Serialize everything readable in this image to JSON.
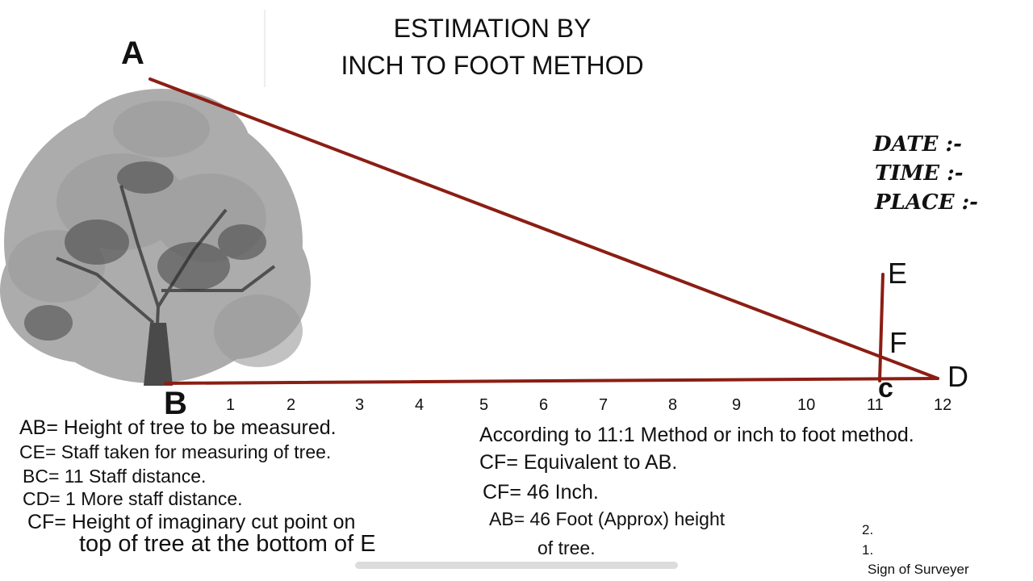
{
  "title": {
    "line1": "ESTIMATION BY",
    "line2": "INCH TO FOOT METHOD"
  },
  "points": {
    "a": "A",
    "b": "B",
    "c": "c",
    "d": "D",
    "e": "E",
    "f": "F"
  },
  "scale_ticks": [
    "1",
    "2",
    "3",
    "4",
    "5",
    "6",
    "7",
    "8",
    "9",
    "10",
    "11",
    "12"
  ],
  "meta": {
    "date": "DATE    :-",
    "time": "TIME     :-",
    "place": "PLACE :-"
  },
  "definitions": [
    "AB= Height of tree to be measured.",
    "CE= Staff taken for measuring of tree.",
    "BC= 11 Staff distance.",
    "CD= 1 More staff distance.",
    "CF= Height of imaginary cut point on",
    "top of tree at the bottom of E"
  ],
  "explanation": [
    "According to 11:1 Method or inch to foot method.",
    "CF= Equivalent to AB.",
    "CF= 46 Inch.",
    "AB= 46 Foot (Approx) height",
    "of tree."
  ],
  "signature": {
    "item2": "2.",
    "item1": "1.",
    "label": "Sign of Surveyer"
  },
  "colors": {
    "line": "#8b1e14",
    "tree": "#555555"
  }
}
